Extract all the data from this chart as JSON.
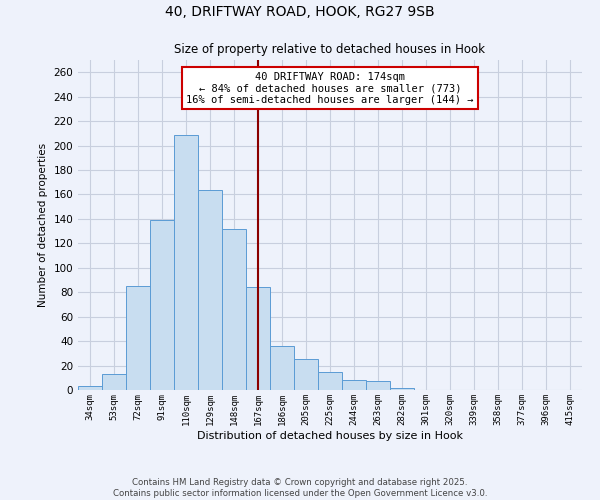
{
  "title": "40, DRIFTWAY ROAD, HOOK, RG27 9SB",
  "subtitle": "Size of property relative to detached houses in Hook",
  "xlabel": "Distribution of detached houses by size in Hook",
  "ylabel": "Number of detached properties",
  "categories": [
    "34sqm",
    "53sqm",
    "72sqm",
    "91sqm",
    "110sqm",
    "129sqm",
    "148sqm",
    "167sqm",
    "186sqm",
    "205sqm",
    "225sqm",
    "244sqm",
    "263sqm",
    "282sqm",
    "301sqm",
    "320sqm",
    "339sqm",
    "358sqm",
    "377sqm",
    "396sqm",
    "415sqm"
  ],
  "values": [
    3,
    13,
    85,
    139,
    209,
    164,
    132,
    84,
    36,
    25,
    15,
    8,
    7,
    2,
    0,
    0,
    0,
    0,
    0,
    0,
    0
  ],
  "bar_color": "#c8ddf0",
  "bar_edge_color": "#5b9bd5",
  "vline_x": 7,
  "vline_color": "#8b0000",
  "annotation_title": "40 DRIFTWAY ROAD: 174sqm",
  "annotation_line1": "← 84% of detached houses are smaller (773)",
  "annotation_line2": "16% of semi-detached houses are larger (144) →",
  "annotation_box_edgecolor": "#cc0000",
  "ylim": [
    0,
    270
  ],
  "yticks": [
    0,
    20,
    40,
    60,
    80,
    100,
    120,
    140,
    160,
    180,
    200,
    220,
    240,
    260
  ],
  "background_color": "#eef2fb",
  "grid_color": "#d8dff0",
  "footer_line1": "Contains HM Land Registry data © Crown copyright and database right 2025.",
  "footer_line2": "Contains public sector information licensed under the Open Government Licence v3.0."
}
